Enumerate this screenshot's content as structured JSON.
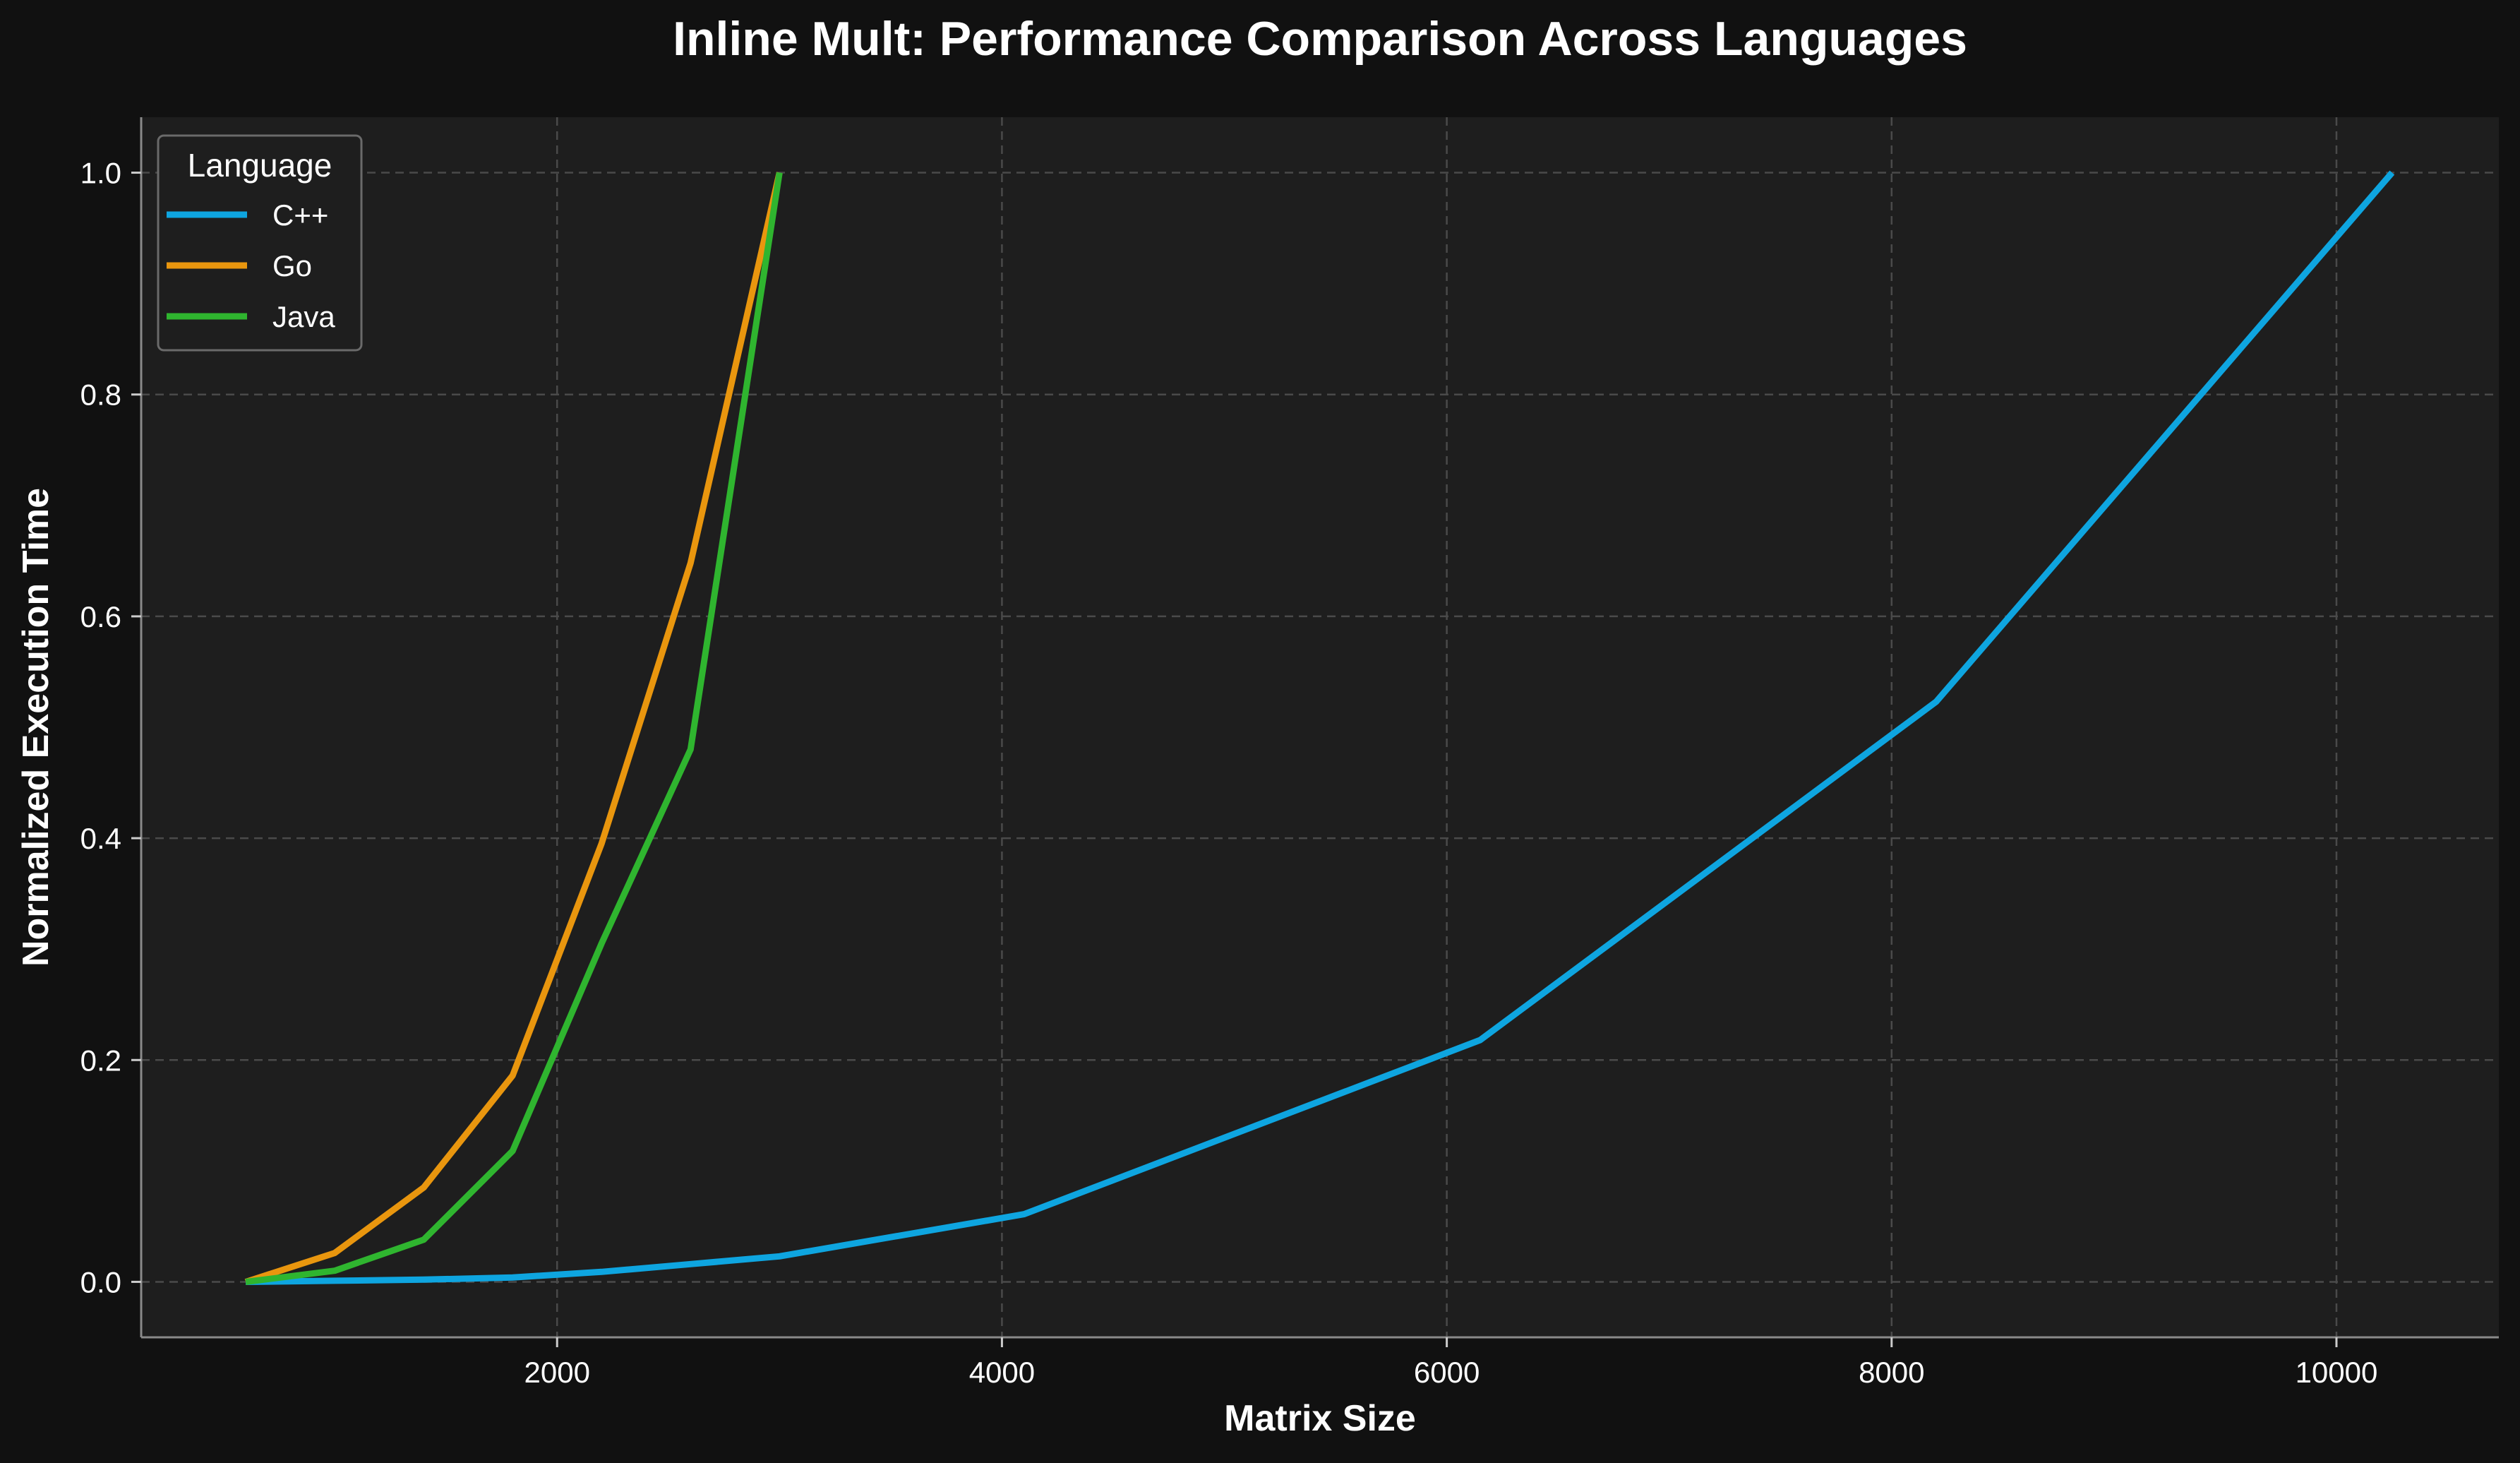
{
  "chart_data": {
    "type": "line",
    "title": "Inline Mult: Performance Comparison Across Languages",
    "xlabel": "Matrix Size",
    "ylabel": "Normalized Execution Time",
    "xlim": [
      130,
      10730
    ],
    "ylim": [
      -0.05,
      1.05
    ],
    "x_ticks": [
      2000,
      4000,
      6000,
      8000,
      10000
    ],
    "x_tick_labels": [
      "2000",
      "4000",
      "6000",
      "8000",
      "10000"
    ],
    "y_ticks": [
      0.0,
      0.2,
      0.4,
      0.6,
      0.8,
      1.0
    ],
    "y_tick_labels": [
      "0.0",
      "0.2",
      "0.4",
      "0.6",
      "0.8",
      "1.0"
    ],
    "grid": true,
    "legend": {
      "title": "Language",
      "placement": "top-left"
    },
    "series": [
      {
        "name": "C++",
        "color": "#0ea5e0",
        "x": [
          600,
          1000,
          1400,
          1800,
          2200,
          2600,
          3000,
          4100,
          6150,
          8200,
          10250
        ],
        "y": [
          0.0,
          0.001,
          0.002,
          0.004,
          0.009,
          0.016,
          0.023,
          0.061,
          0.218,
          0.523,
          1.0
        ]
      },
      {
        "name": "Go",
        "color": "#e9960e",
        "x": [
          600,
          1000,
          1400,
          1800,
          2200,
          2600,
          3000
        ],
        "y": [
          0.0,
          0.026,
          0.085,
          0.186,
          0.395,
          0.648,
          1.0
        ]
      },
      {
        "name": "Java",
        "color": "#2fb52f",
        "x": [
          600,
          1000,
          1400,
          1800,
          2200,
          2600,
          3000
        ],
        "y": [
          0.0,
          0.01,
          0.038,
          0.118,
          0.305,
          0.48,
          1.0
        ]
      }
    ]
  }
}
